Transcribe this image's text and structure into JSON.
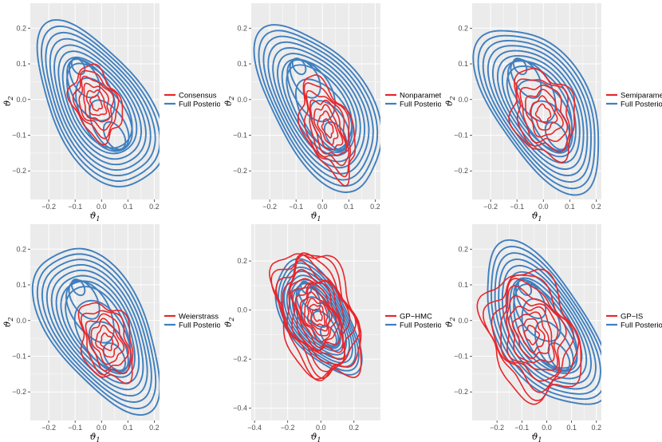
{
  "colors": {
    "red": "#e8262b",
    "blue": "#3f7fbf",
    "panel_bg": "#ebebeb",
    "grid": "#ffffff"
  },
  "axes": {
    "xlabel": "ϑ",
    "xsub": "1",
    "ylabel": "ϑ",
    "ysub": "2"
  },
  "chart_data": [
    {
      "type": "contour",
      "legend": [
        "Consensus",
        "Full Posterior"
      ],
      "xticks": [
        -0.2,
        -0.1,
        0.0,
        0.1,
        0.2
      ],
      "xtick_labels": [
        "−0.2",
        "−0.1",
        "0.0",
        "0.1",
        "0.2"
      ],
      "yticks": [
        0.2,
        0.1,
        0.0,
        -0.1,
        -0.2
      ],
      "ytick_labels": [
        "0.2",
        "0.1",
        "0.0",
        "−0.1",
        "−0.2"
      ],
      "xlim": [
        -0.27,
        0.22
      ],
      "ylim": [
        -0.28,
        0.27
      ],
      "full_posterior": {
        "center": [
          -0.01,
          -0.02
        ],
        "modes": [
          [
            -0.1,
            0.11
          ],
          [
            0.07,
            -0.13
          ]
        ],
        "levels": 14
      },
      "method": {
        "center": [
          -0.02,
          -0.01
        ],
        "extent": [
          0.08,
          0.1
        ],
        "levels": 6
      }
    },
    {
      "type": "contour",
      "legend": [
        "Nonparametric",
        "Full Posterior"
      ],
      "xticks": [
        -0.2,
        -0.1,
        0.0,
        0.1,
        0.2
      ],
      "xtick_labels": [
        "−0.2",
        "−0.1",
        "0.0",
        "0.1",
        "0.2"
      ],
      "yticks": [
        0.2,
        0.1,
        0.0,
        -0.1,
        -0.2
      ],
      "ytick_labels": [
        "0.2",
        "0.1",
        "0.0",
        "−0.1",
        "−0.2"
      ],
      "xlim": [
        -0.27,
        0.22
      ],
      "ylim": [
        -0.28,
        0.27
      ],
      "full_posterior": {
        "center": [
          -0.01,
          -0.02
        ],
        "modes": [
          [
            -0.1,
            0.11
          ],
          [
            0.07,
            -0.13
          ]
        ],
        "levels": 14
      },
      "method": {
        "center": [
          0.02,
          -0.08
        ],
        "extent": [
          0.08,
          0.14
        ],
        "levels": 7
      }
    },
    {
      "type": "contour",
      "legend": [
        "Semiparametric",
        "Full Posterior"
      ],
      "xticks": [
        -0.2,
        -0.1,
        0.0,
        0.1,
        0.2
      ],
      "xtick_labels": [
        "−0.2",
        "−0.1",
        "0.0",
        "0.1",
        "0.2"
      ],
      "yticks": [
        0.2,
        0.1,
        0.0,
        -0.1,
        -0.2
      ],
      "ytick_labels": [
        "0.2",
        "0.1",
        "0.0",
        "−0.1",
        "−0.2"
      ],
      "xlim": [
        -0.27,
        0.22
      ],
      "ylim": [
        -0.28,
        0.27
      ],
      "full_posterior": {
        "center": [
          -0.01,
          -0.02
        ],
        "modes": [
          [
            -0.1,
            0.11
          ],
          [
            0.07,
            -0.13
          ]
        ],
        "levels": 14
      },
      "method": {
        "center": [
          0.0,
          -0.04
        ],
        "extent": [
          0.11,
          0.12
        ],
        "levels": 6
      }
    },
    {
      "type": "contour",
      "legend": [
        "Weierstrass",
        "Full Posterior"
      ],
      "xticks": [
        -0.2,
        -0.1,
        0.0,
        0.1,
        0.2
      ],
      "xtick_labels": [
        "−0.2",
        "−0.1",
        "0.0",
        "0.1",
        "0.2"
      ],
      "yticks": [
        0.2,
        0.1,
        0.0,
        -0.1,
        -0.2
      ],
      "ytick_labels": [
        "0.2",
        "0.1",
        "0.0",
        "−0.1",
        "−0.2"
      ],
      "xlim": [
        -0.27,
        0.22
      ],
      "ylim": [
        -0.28,
        0.27
      ],
      "full_posterior": {
        "center": [
          -0.01,
          -0.02
        ],
        "modes": [
          [
            -0.1,
            0.11
          ],
          [
            0.07,
            -0.13
          ]
        ],
        "levels": 14
      },
      "method": {
        "center": [
          0.02,
          -0.06
        ],
        "extent": [
          0.09,
          0.11
        ],
        "levels": 6
      }
    },
    {
      "type": "contour",
      "legend": [
        "GP−HMC",
        "Full Posterior"
      ],
      "xticks": [
        -0.4,
        -0.2,
        0.0,
        0.2
      ],
      "xtick_labels": [
        "−0.4",
        "−0.2",
        "0.0",
        "0.2"
      ],
      "yticks": [
        0.2,
        0.0,
        -0.2,
        -0.4
      ],
      "ytick_labels": [
        "0.2",
        "0.0",
        "−0.2",
        "−0.4"
      ],
      "xlim": [
        -0.42,
        0.36
      ],
      "ylim": [
        -0.45,
        0.35
      ],
      "full_posterior": {
        "center": [
          -0.02,
          -0.03
        ],
        "modes": [
          [
            -0.1,
            0.11
          ],
          [
            0.07,
            -0.13
          ]
        ],
        "levels": 14
      },
      "method": {
        "center": [
          -0.02,
          -0.02
        ],
        "extent": [
          0.22,
          0.27
        ],
        "levels": 14
      }
    },
    {
      "type": "contour",
      "legend": [
        "GP−IS",
        "Full Posterior"
      ],
      "xticks": [
        -0.2,
        -0.1,
        0.0,
        0.1,
        0.2
      ],
      "xtick_labels": [
        "−0.2",
        "−0.1",
        "0.0",
        "0.1",
        "0.2"
      ],
      "yticks": [
        0.2,
        0.1,
        0.0,
        -0.1,
        -0.2
      ],
      "ytick_labels": [
        "0.2",
        "0.1",
        "0.0",
        "−0.1",
        "−0.2"
      ],
      "xlim": [
        -0.3,
        0.22
      ],
      "ylim": [
        -0.28,
        0.27
      ],
      "full_posterior": {
        "center": [
          -0.01,
          -0.02
        ],
        "modes": [
          [
            -0.1,
            0.11
          ],
          [
            0.07,
            -0.13
          ]
        ],
        "levels": 14
      },
      "method": {
        "center": [
          -0.06,
          -0.04
        ],
        "extent": [
          0.17,
          0.18
        ],
        "levels": 9
      }
    }
  ]
}
